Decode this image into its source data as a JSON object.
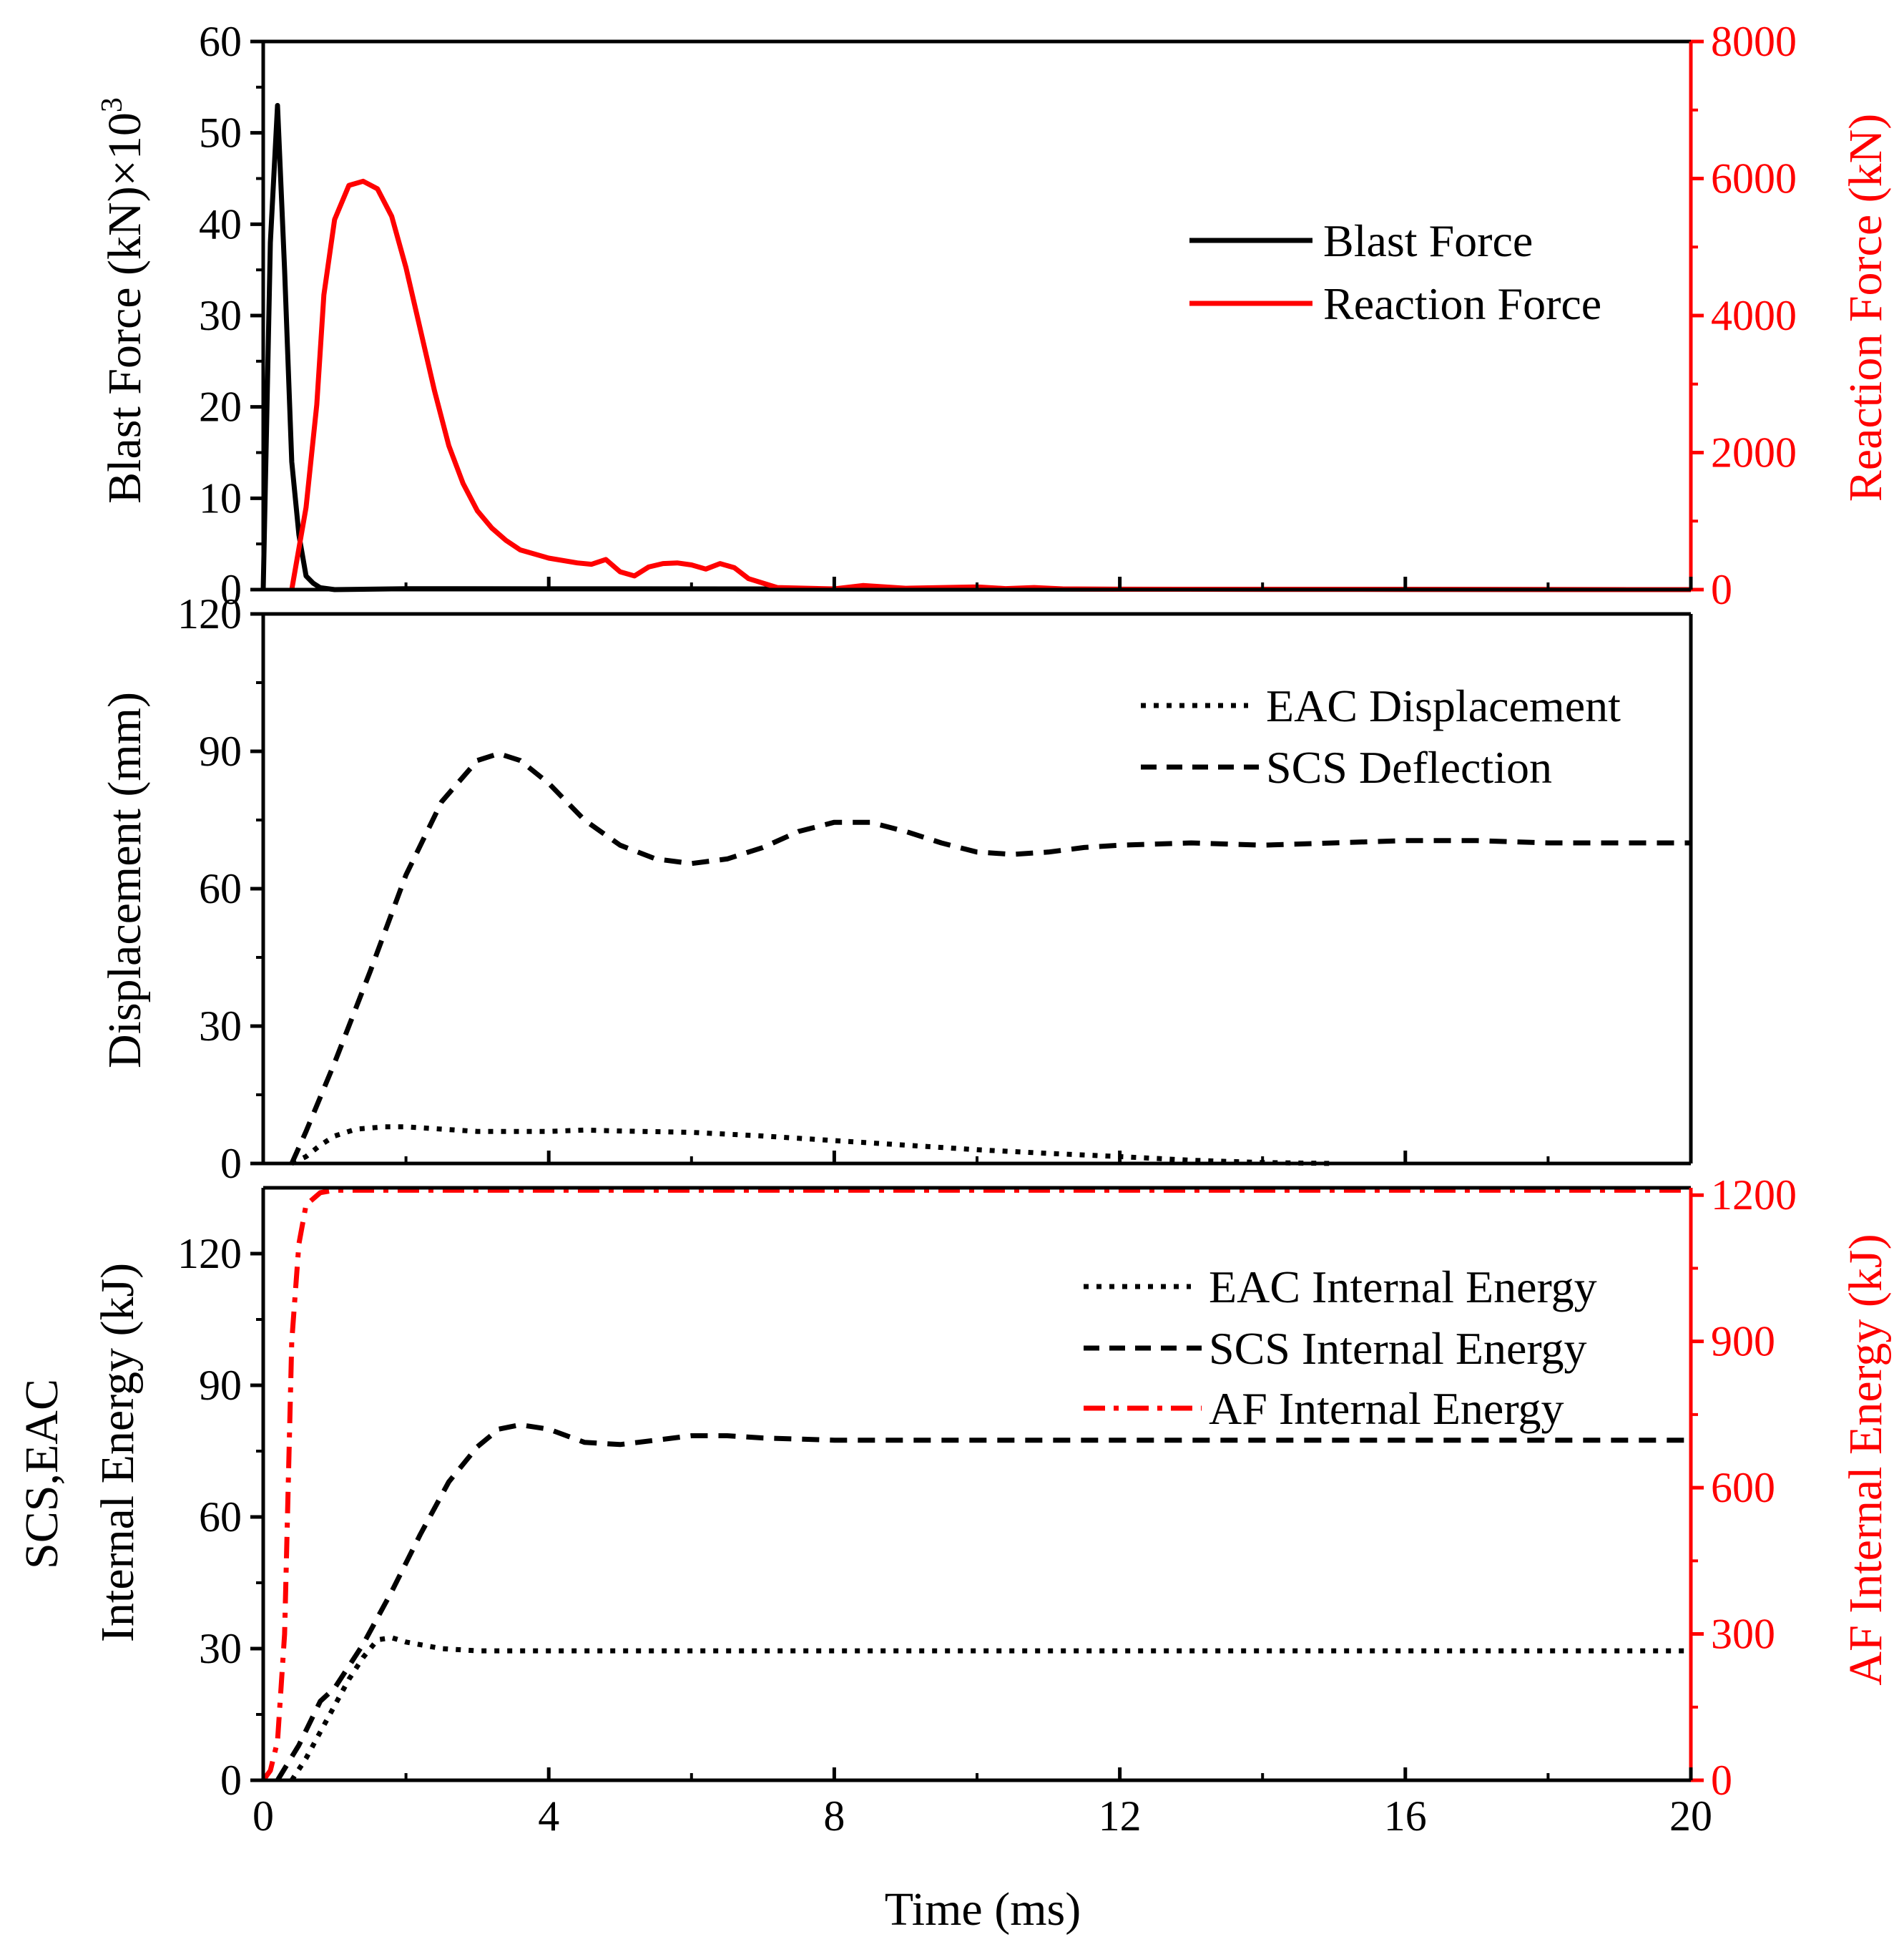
{
  "colors": {
    "black": "#000000",
    "red": "#ff0000"
  },
  "shared_x": {
    "label": "Time (ms)",
    "range": [
      0,
      20
    ],
    "ticks": [
      "0",
      "4",
      "8",
      "12",
      "16",
      "20"
    ]
  },
  "chart_data": [
    {
      "type": "line",
      "panel": "top",
      "xlabel": "Time (ms)",
      "xlim": [
        0,
        20
      ],
      "ylabel": "Blast Force (kN)×10³",
      "ylabel_main": "Blast Force (kN)×10",
      "ylabel_sup": "3",
      "ylim": [
        0,
        60
      ],
      "yticks": [
        "0",
        "10",
        "20",
        "30",
        "40",
        "50",
        "60"
      ],
      "y2label": "Reaction Force (kN)",
      "y2lim": [
        0,
        8000
      ],
      "y2ticks": [
        "0",
        "2000",
        "4000",
        "6000",
        "8000"
      ],
      "legend_position": "upper-right",
      "series": [
        {
          "name": "Blast Force",
          "axis": "left",
          "color": "#000000",
          "style": "solid",
          "points": [
            [
              0,
              0
            ],
            [
              0.1,
              38
            ],
            [
              0.2,
              53
            ],
            [
              0.3,
              35
            ],
            [
              0.4,
              14
            ],
            [
              0.5,
              6
            ],
            [
              0.6,
              1.5
            ],
            [
              0.7,
              0.7
            ],
            [
              0.8,
              0.2
            ],
            [
              1,
              0
            ],
            [
              2,
              0.1
            ],
            [
              20,
              0
            ]
          ]
        },
        {
          "name": "Reaction Force",
          "axis": "right",
          "color": "#ff0000",
          "style": "solid",
          "points": [
            [
              0.4,
              0
            ],
            [
              0.5,
              600
            ],
            [
              0.6,
              1200
            ],
            [
              0.75,
              2700
            ],
            [
              0.85,
              4300
            ],
            [
              1,
              5400
            ],
            [
              1.2,
              5900
            ],
            [
              1.4,
              5960
            ],
            [
              1.6,
              5850
            ],
            [
              1.8,
              5450
            ],
            [
              2,
              4700
            ],
            [
              2.2,
              3800
            ],
            [
              2.4,
              2900
            ],
            [
              2.6,
              2100
            ],
            [
              2.8,
              1550
            ],
            [
              3,
              1150
            ],
            [
              3.2,
              900
            ],
            [
              3.4,
              720
            ],
            [
              3.6,
              580
            ],
            [
              4,
              460
            ],
            [
              4.4,
              390
            ],
            [
              4.6,
              370
            ],
            [
              4.8,
              440
            ],
            [
              5,
              260
            ],
            [
              5.2,
              200
            ],
            [
              5.4,
              330
            ],
            [
              5.6,
              380
            ],
            [
              5.8,
              390
            ],
            [
              6,
              360
            ],
            [
              6.2,
              300
            ],
            [
              6.4,
              380
            ],
            [
              6.6,
              320
            ],
            [
              6.8,
              160
            ],
            [
              7.2,
              30
            ],
            [
              8,
              10
            ],
            [
              8.4,
              60
            ],
            [
              9,
              20
            ],
            [
              10,
              40
            ],
            [
              10.4,
              15
            ],
            [
              10.8,
              30
            ],
            [
              11.2,
              10
            ],
            [
              12,
              5
            ],
            [
              16,
              3
            ],
            [
              20,
              0
            ]
          ]
        }
      ]
    },
    {
      "type": "line",
      "panel": "middle",
      "xlabel": "Time (ms)",
      "xlim": [
        0,
        20
      ],
      "ylabel": "Displacement (mm)",
      "ylim": [
        0,
        120
      ],
      "yticks": [
        "0",
        "30",
        "60",
        "90",
        "120"
      ],
      "legend_position": "upper-right",
      "series": [
        {
          "name": "EAC Displacement",
          "color": "#000000",
          "style": "dotted",
          "points": [
            [
              0.4,
              0
            ],
            [
              0.6,
              1.5
            ],
            [
              0.8,
              4
            ],
            [
              1,
              6
            ],
            [
              1.3,
              7.5
            ],
            [
              1.7,
              8
            ],
            [
              2,
              8
            ],
            [
              2.5,
              7.5
            ],
            [
              3,
              7
            ],
            [
              3.5,
              7
            ],
            [
              4,
              7
            ],
            [
              4.5,
              7.3
            ],
            [
              5,
              7.1
            ],
            [
              6,
              6.8
            ],
            [
              7,
              6
            ],
            [
              8,
              5
            ],
            [
              9,
              4
            ],
            [
              10,
              3
            ],
            [
              11,
              2.2
            ],
            [
              12,
              1.5
            ],
            [
              13,
              0.7
            ],
            [
              14,
              0.2
            ],
            [
              15,
              0
            ]
          ]
        },
        {
          "name": "SCS Deflection",
          "color": "#000000",
          "style": "dashed",
          "points": [
            [
              0.4,
              0
            ],
            [
              0.6,
              7
            ],
            [
              1,
              22
            ],
            [
              1.5,
              42
            ],
            [
              2,
              63
            ],
            [
              2.5,
              79
            ],
            [
              3,
              88
            ],
            [
              3.3,
              89.5
            ],
            [
              3.6,
              88
            ],
            [
              4,
              83
            ],
            [
              4.5,
              75
            ],
            [
              5,
              69.5
            ],
            [
              5.5,
              66.5
            ],
            [
              6,
              65.5
            ],
            [
              6.5,
              66.5
            ],
            [
              7,
              69
            ],
            [
              7.5,
              72.5
            ],
            [
              8,
              74.5
            ],
            [
              8.5,
              74.5
            ],
            [
              9,
              72.5
            ],
            [
              9.5,
              70
            ],
            [
              10,
              68
            ],
            [
              10.5,
              67.5
            ],
            [
              11,
              68
            ],
            [
              11.5,
              69
            ],
            [
              12,
              69.5
            ],
            [
              13,
              70
            ],
            [
              14,
              69.5
            ],
            [
              15,
              70
            ],
            [
              16,
              70.5
            ],
            [
              17,
              70.5
            ],
            [
              18,
              70
            ],
            [
              19,
              70
            ],
            [
              20,
              70
            ]
          ]
        }
      ]
    },
    {
      "type": "line",
      "panel": "bottom",
      "xlabel": "Time (ms)",
      "xlim": [
        0,
        20
      ],
      "ylabel": "SCS,EAC Internal Energy (kJ)",
      "ylabel_line1": "SCS,EAC",
      "ylabel_line2": "Internal Energy (kJ)",
      "ylim": [
        0,
        135
      ],
      "yticks": [
        "0",
        "30",
        "60",
        "90",
        "120"
      ],
      "y2label": "AF Internal Energy (kJ)",
      "y2lim": [
        0,
        1215
      ],
      "y2ticks": [
        "0",
        "300",
        "600",
        "900",
        "1200"
      ],
      "legend_position": "upper-right",
      "series": [
        {
          "name": "EAC Internal Energy",
          "axis": "left",
          "color": "#000000",
          "style": "dotted",
          "points": [
            [
              0.4,
              0
            ],
            [
              0.6,
              5
            ],
            [
              0.8,
              11
            ],
            [
              1,
              17
            ],
            [
              1.2,
              23
            ],
            [
              1.4,
              28
            ],
            [
              1.6,
              32
            ],
            [
              1.8,
              32.5
            ],
            [
              2,
              31.5
            ],
            [
              2.5,
              30
            ],
            [
              3,
              29.5
            ],
            [
              4,
              29.5
            ],
            [
              6,
              29.5
            ],
            [
              10,
              29.5
            ],
            [
              16,
              29.5
            ],
            [
              20,
              29.5
            ]
          ]
        },
        {
          "name": "SCS Internal Energy",
          "axis": "left",
          "color": "#000000",
          "style": "dashed",
          "points": [
            [
              0.2,
              0
            ],
            [
              0.5,
              8
            ],
            [
              0.8,
              18
            ],
            [
              1,
              21
            ],
            [
              1.4,
              31
            ],
            [
              1.8,
              43
            ],
            [
              2.2,
              56
            ],
            [
              2.6,
              68
            ],
            [
              3,
              76
            ],
            [
              3.3,
              80
            ],
            [
              3.6,
              81
            ],
            [
              4,
              80
            ],
            [
              4.5,
              77
            ],
            [
              5,
              76.5
            ],
            [
              5.5,
              77.5
            ],
            [
              6,
              78.5
            ],
            [
              6.5,
              78.5
            ],
            [
              7,
              78
            ],
            [
              8,
              77.5
            ],
            [
              9,
              77.5
            ],
            [
              10,
              77.5
            ],
            [
              12,
              77.5
            ],
            [
              16,
              77.5
            ],
            [
              20,
              77.5
            ]
          ]
        },
        {
          "name": "AF Internal Energy",
          "axis": "right",
          "color": "#ff0000",
          "style": "dashdot",
          "points": [
            [
              0,
              0
            ],
            [
              0.1,
              20
            ],
            [
              0.2,
              80
            ],
            [
              0.3,
              300
            ],
            [
              0.4,
              900
            ],
            [
              0.5,
              1100
            ],
            [
              0.6,
              1180
            ],
            [
              0.8,
              1205
            ],
            [
              1,
              1210
            ],
            [
              2,
              1210
            ],
            [
              20,
              1210
            ]
          ]
        }
      ]
    }
  ]
}
